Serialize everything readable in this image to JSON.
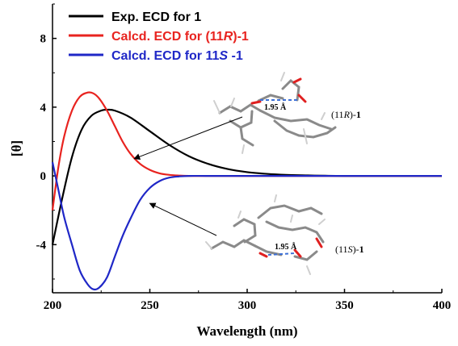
{
  "chart_data": {
    "type": "line",
    "xlabel": "Wavelength (nm)",
    "ylabel": "[θ]",
    "xlim": [
      200,
      400
    ],
    "ylim": [
      -6.8,
      10
    ],
    "x_ticks": [
      200,
      250,
      300,
      350,
      400
    ],
    "y_ticks": [
      -4,
      0,
      4,
      8
    ],
    "grid": false,
    "legend_position": "top-left",
    "series": [
      {
        "name": "Exp. ECD for 1",
        "legend_parts": [
          {
            "t": "Exp. ECD for 1"
          }
        ],
        "color": "#000000",
        "x": [
          200,
          205,
          210,
          215,
          220,
          225,
          228,
          232,
          240,
          250,
          260,
          270,
          280,
          290,
          300,
          310,
          320,
          330,
          340,
          350,
          375,
          400
        ],
        "y": [
          -4.0,
          -1.3,
          1.1,
          2.7,
          3.5,
          3.8,
          3.85,
          3.8,
          3.4,
          2.6,
          1.8,
          1.15,
          0.7,
          0.4,
          0.22,
          0.12,
          0.06,
          0.03,
          0.01,
          0.0,
          0.0,
          0.0
        ]
      },
      {
        "name": "Calcd. ECD for (11R)-1",
        "legend_parts": [
          {
            "t": "Calcd. ECD for (11"
          },
          {
            "t": "R",
            "i": true
          },
          {
            "t": ")-1"
          }
        ],
        "color": "#e8231f",
        "x": [
          200,
          203,
          206,
          210,
          214,
          218,
          221,
          224,
          228,
          232,
          236,
          240,
          245,
          250,
          255,
          260,
          265,
          270,
          280,
          300,
          350,
          400
        ],
        "y": [
          -2.0,
          0.5,
          2.3,
          3.8,
          4.6,
          4.85,
          4.8,
          4.5,
          3.8,
          2.9,
          2.0,
          1.3,
          0.7,
          0.35,
          0.15,
          0.06,
          0.02,
          0.0,
          0.0,
          0.0,
          0.0,
          0.0
        ]
      },
      {
        "name": "Calcd. ECD for 11S -1",
        "legend_parts": [
          {
            "t": "Calcd. ECD for "
          },
          {
            "t": "11"
          },
          {
            "t": "S",
            "i": true
          },
          {
            "t": " -1"
          }
        ],
        "color": "#1f27c7",
        "x": [
          200,
          203,
          206,
          210,
          214,
          218,
          221,
          224,
          228,
          232,
          236,
          240,
          245,
          250,
          255,
          260,
          265,
          270,
          280,
          300,
          350,
          400
        ],
        "y": [
          0.8,
          -0.8,
          -2.4,
          -4.0,
          -5.5,
          -6.3,
          -6.6,
          -6.5,
          -5.9,
          -4.7,
          -3.5,
          -2.5,
          -1.4,
          -0.7,
          -0.3,
          -0.1,
          -0.03,
          0.0,
          0.0,
          0.0,
          0.0,
          0.0
        ]
      }
    ],
    "annotations": [
      {
        "label_parts": [
          {
            "t": "(11"
          },
          {
            "t": "R",
            "i": true
          },
          {
            "t": ")-"
          },
          {
            "t": "1",
            "b": true
          }
        ],
        "bond": "1.95 Å",
        "arrow_to_x": 242,
        "arrow_to_y": 1.0
      },
      {
        "label_parts": [
          {
            "t": "(11"
          },
          {
            "t": "S",
            "i": true
          },
          {
            "t": ")-"
          },
          {
            "t": "1",
            "b": true
          }
        ],
        "bond": "1.95 Å",
        "arrow_to_x": 250,
        "arrow_to_y": -1.6
      }
    ]
  }
}
